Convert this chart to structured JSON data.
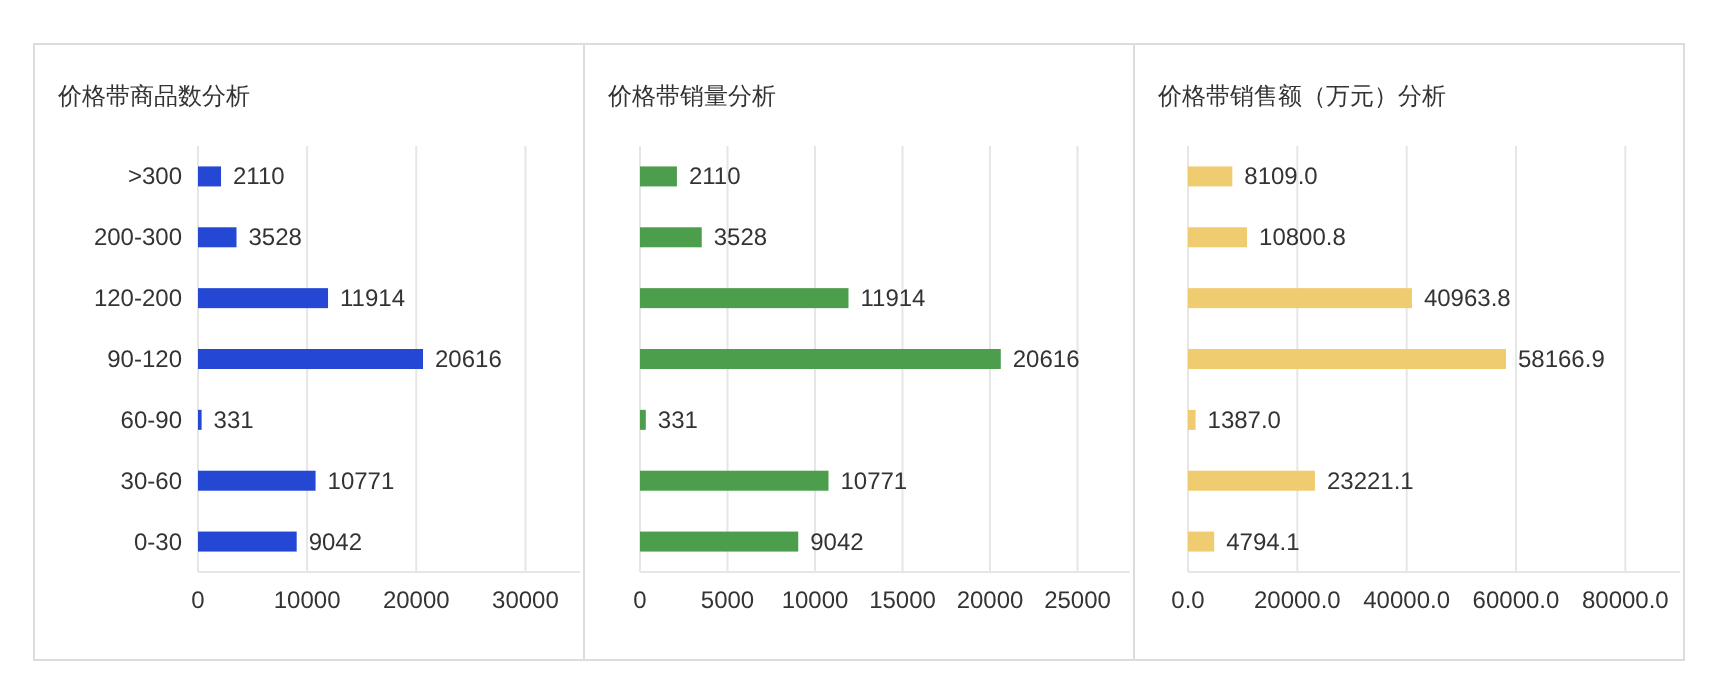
{
  "chart_data": [
    {
      "type": "bar",
      "orientation": "horizontal",
      "title": "价格带商品数分析",
      "categories": [
        ">300",
        "200-300",
        "120-200",
        "90-120",
        "60-90",
        "30-60",
        "0-30"
      ],
      "series": [
        {
          "color": "#2447d4",
          "values": [
            2110,
            3528,
            11914,
            20616,
            331,
            10771,
            9042
          ]
        }
      ],
      "data_labels": true,
      "xlim": [
        0,
        35000
      ],
      "xticks": [
        0,
        10000,
        20000,
        30000
      ],
      "grid": "x"
    },
    {
      "type": "bar",
      "orientation": "horizontal",
      "title": "价格带销量分析",
      "categories": [
        null,
        null,
        null,
        null,
        null,
        null,
        null
      ],
      "series": [
        {
          "color": "#4c9e4c",
          "values": [
            2110,
            3528,
            11914,
            20616,
            331,
            10771,
            9042
          ]
        }
      ],
      "data_labels": true,
      "xlim": [
        0,
        28000
      ],
      "xticks": [
        0,
        5000,
        10000,
        15000,
        20000,
        25000
      ],
      "grid": "x",
      "tick_labels": "x"
    },
    {
      "type": "bar",
      "orientation": "horizontal",
      "title": "价格带销售额（万元）分析",
      "categories": [
        null,
        null,
        null,
        null,
        null,
        null,
        null
      ],
      "series": [
        {
          "color": "#f0cc70",
          "values": [
            8109.0,
            10800.8,
            40963.8,
            58166.9,
            1387.0,
            23221.1,
            4794.1
          ],
          "value_labels": [
            "8109.0",
            "10800.8",
            "40963.8",
            "58166.9",
            "1387.0",
            "23221.1",
            "4794.1"
          ]
        }
      ],
      "xlim": [
        0,
        90000
      ],
      "xticks": [
        {
          "value": 0,
          "label": "0.0"
        },
        {
          "value": 20000,
          "label": "20000.0"
        },
        {
          "value": 40000,
          "label": "40000.0"
        },
        {
          "value": 60000,
          "label": "60000.0"
        },
        {
          "value": 80000,
          "label": "80000.0"
        }
      ],
      "grid": "x",
      "tick_labels": "x"
    }
  ]
}
